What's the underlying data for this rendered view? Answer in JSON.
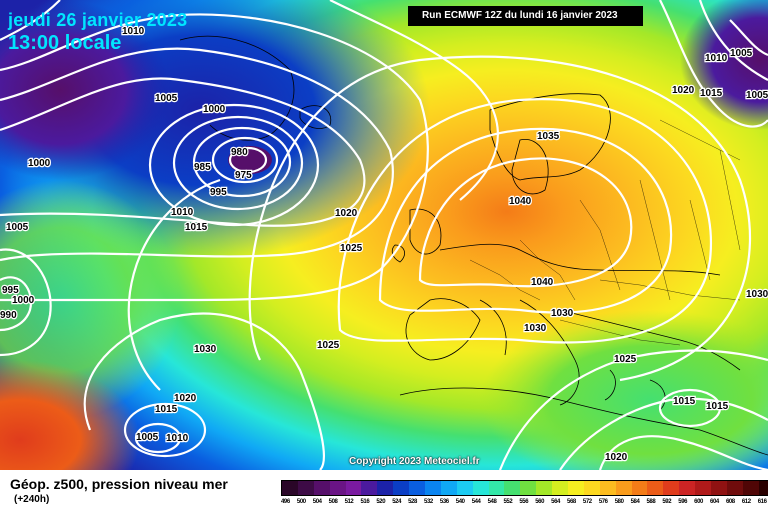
{
  "title": {
    "date": "jeudi 26 janvier 2023",
    "time": "13:00 locale"
  },
  "run": "Run ECMWF 12Z du lundi 16 janvier 2023",
  "copyright": "Copyright 2023 Meteociel.fr",
  "footer": {
    "title": "Géop. z500, pression niveau mer",
    "subtitle": "(+240h)"
  },
  "legend": {
    "labels": [
      "496",
      "500",
      "504",
      "508",
      "512",
      "516",
      "520",
      "524",
      "528",
      "532",
      "536",
      "540",
      "544",
      "548",
      "552",
      "556",
      "560",
      "564",
      "568",
      "572",
      "576",
      "580",
      "584",
      "588",
      "592",
      "596",
      "600",
      "604",
      "608",
      "612",
      "616"
    ],
    "colors": [
      "#2a0628",
      "#3d0b46",
      "#560f6a",
      "#6a1485",
      "#7a1aa0",
      "#4b1a9e",
      "#1c22a8",
      "#0b3ec5",
      "#0a5ee0",
      "#0a84f0",
      "#10a8f5",
      "#1ccbf2",
      "#27e6d8",
      "#33e8a8",
      "#45e070",
      "#70e040",
      "#a4e828",
      "#d4ee20",
      "#f6ee20",
      "#fcd820",
      "#fcbc20",
      "#fa9c1c",
      "#f47c18",
      "#ec5c18",
      "#e03c1c",
      "#cc2424",
      "#b01a1a",
      "#901212",
      "#700c0c",
      "#500606",
      "#2a0000"
    ]
  },
  "isobars": [
    {
      "text": "1010"
    },
    {
      "text": "1005"
    },
    {
      "text": "1000"
    },
    {
      "text": "980"
    },
    {
      "text": "985"
    },
    {
      "text": "995"
    },
    {
      "text": "975"
    },
    {
      "text": "1010"
    },
    {
      "text": "1015"
    },
    {
      "text": "1000"
    },
    {
      "text": "1005"
    },
    {
      "text": "1020"
    },
    {
      "text": "1025"
    },
    {
      "text": "1035"
    },
    {
      "text": "1040"
    },
    {
      "text": "1040"
    },
    {
      "text": "1030"
    },
    {
      "text": "1030"
    },
    {
      "text": "1030"
    },
    {
      "text": "1025"
    },
    {
      "text": "1025"
    },
    {
      "text": "1020"
    },
    {
      "text": "1015"
    },
    {
      "text": "1005"
    },
    {
      "text": "1010"
    },
    {
      "text": "1015"
    },
    {
      "text": "1015"
    },
    {
      "text": "1020"
    },
    {
      "text": "1010"
    },
    {
      "text": "1005"
    },
    {
      "text": "1020"
    },
    {
      "text": "1015"
    },
    {
      "text": "1005"
    },
    {
      "text": "1030"
    },
    {
      "text": "995"
    },
    {
      "text": "1000"
    },
    {
      "text": "990"
    }
  ]
}
